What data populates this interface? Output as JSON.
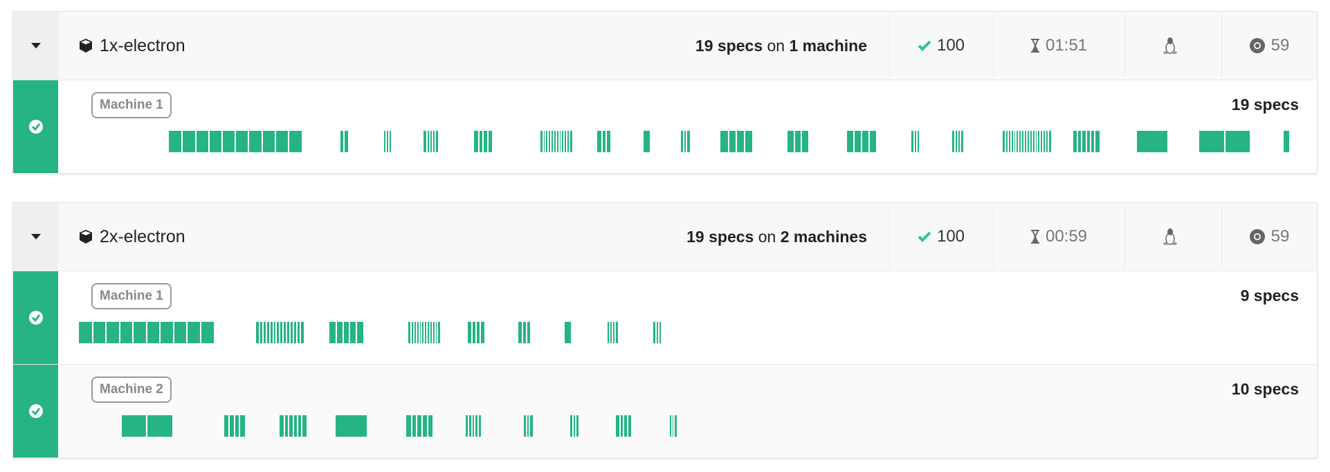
{
  "colors": {
    "pass": "#26b482",
    "header_bg": "#f7f8f8"
  },
  "timeline_max_s": 111,
  "runs": [
    {
      "name": "1x-electron",
      "summary": {
        "specs": "19 specs",
        "on": "on",
        "machines": "1 machine"
      },
      "passed": "100",
      "duration": "01:51",
      "os_icon": "linux-icon",
      "browser_icon": "chrome-icon",
      "browser_version": "59",
      "machines": [
        {
          "label": "Machine 1",
          "spec_count": "19 specs",
          "status": "passed",
          "specs": [
            {
              "start": 8.2,
              "end": 20.3,
              "tests": 10
            },
            {
              "start": 23.8,
              "end": 24.5,
              "tests": 2
            },
            {
              "start": 27.8,
              "end": 28.4,
              "tests": 3
            },
            {
              "start": 31.4,
              "end": 32.7,
              "tests": 5
            },
            {
              "start": 36.0,
              "end": 37.6,
              "tests": 4
            },
            {
              "start": 42.0,
              "end": 44.9,
              "tests": 12
            },
            {
              "start": 47.2,
              "end": 48.4,
              "tests": 3
            },
            {
              "start": 51.4,
              "end": 52.0,
              "tests": 1
            },
            {
              "start": 54.8,
              "end": 55.6,
              "tests": 3
            },
            {
              "start": 58.4,
              "end": 61.3,
              "tests": 4
            },
            {
              "start": 64.5,
              "end": 66.4,
              "tests": 3
            },
            {
              "start": 69.9,
              "end": 72.6,
              "tests": 4
            },
            {
              "start": 75.8,
              "end": 76.5,
              "tests": 3
            },
            {
              "start": 79.5,
              "end": 80.5,
              "tests": 4
            },
            {
              "start": 84.1,
              "end": 88.5,
              "tests": 18
            },
            {
              "start": 90.5,
              "end": 92.9,
              "tests": 6
            },
            {
              "start": 96.3,
              "end": 99.1,
              "tests": 1
            },
            {
              "start": 102.0,
              "end": 106.6,
              "tests": 2
            },
            {
              "start": 109.7,
              "end": 110.2,
              "tests": 1
            }
          ]
        }
      ]
    },
    {
      "name": "2x-electron",
      "summary": {
        "specs": "19 specs",
        "on": "on",
        "machines": "2 machines"
      },
      "passed": "100",
      "duration": "00:59",
      "os_icon": "linux-icon",
      "browser_icon": "chrome-icon",
      "browser_version": "59",
      "machines": [
        {
          "label": "Machine 1",
          "spec_count": "9 specs",
          "status": "passed",
          "specs": [
            {
              "start": 0.0,
              "end": 12.3,
              "tests": 10
            },
            {
              "start": 16.1,
              "end": 20.5,
              "tests": 14
            },
            {
              "start": 22.8,
              "end": 25.9,
              "tests": 5
            },
            {
              "start": 30.0,
              "end": 32.9,
              "tests": 12
            },
            {
              "start": 35.4,
              "end": 36.9,
              "tests": 4
            },
            {
              "start": 40.0,
              "end": 41.1,
              "tests": 3
            },
            {
              "start": 44.2,
              "end": 44.8,
              "tests": 1
            },
            {
              "start": 48.1,
              "end": 49.1,
              "tests": 4
            },
            {
              "start": 52.3,
              "end": 53.0,
              "tests": 3
            }
          ]
        },
        {
          "label": "Machine 2",
          "spec_count": "10 specs",
          "status": "passed",
          "specs": [
            {
              "start": 3.9,
              "end": 8.5,
              "tests": 2
            },
            {
              "start": 13.2,
              "end": 15.1,
              "tests": 4
            },
            {
              "start": 18.3,
              "end": 20.7,
              "tests": 6
            },
            {
              "start": 23.4,
              "end": 26.2,
              "tests": 1
            },
            {
              "start": 29.8,
              "end": 32.2,
              "tests": 5
            },
            {
              "start": 35.2,
              "end": 36.6,
              "tests": 5
            },
            {
              "start": 40.5,
              "end": 41.3,
              "tests": 3
            },
            {
              "start": 44.7,
              "end": 45.5,
              "tests": 3
            },
            {
              "start": 48.9,
              "end": 50.3,
              "tests": 4
            },
            {
              "start": 53.8,
              "end": 54.4,
              "tests": 3
            }
          ]
        }
      ]
    }
  ]
}
